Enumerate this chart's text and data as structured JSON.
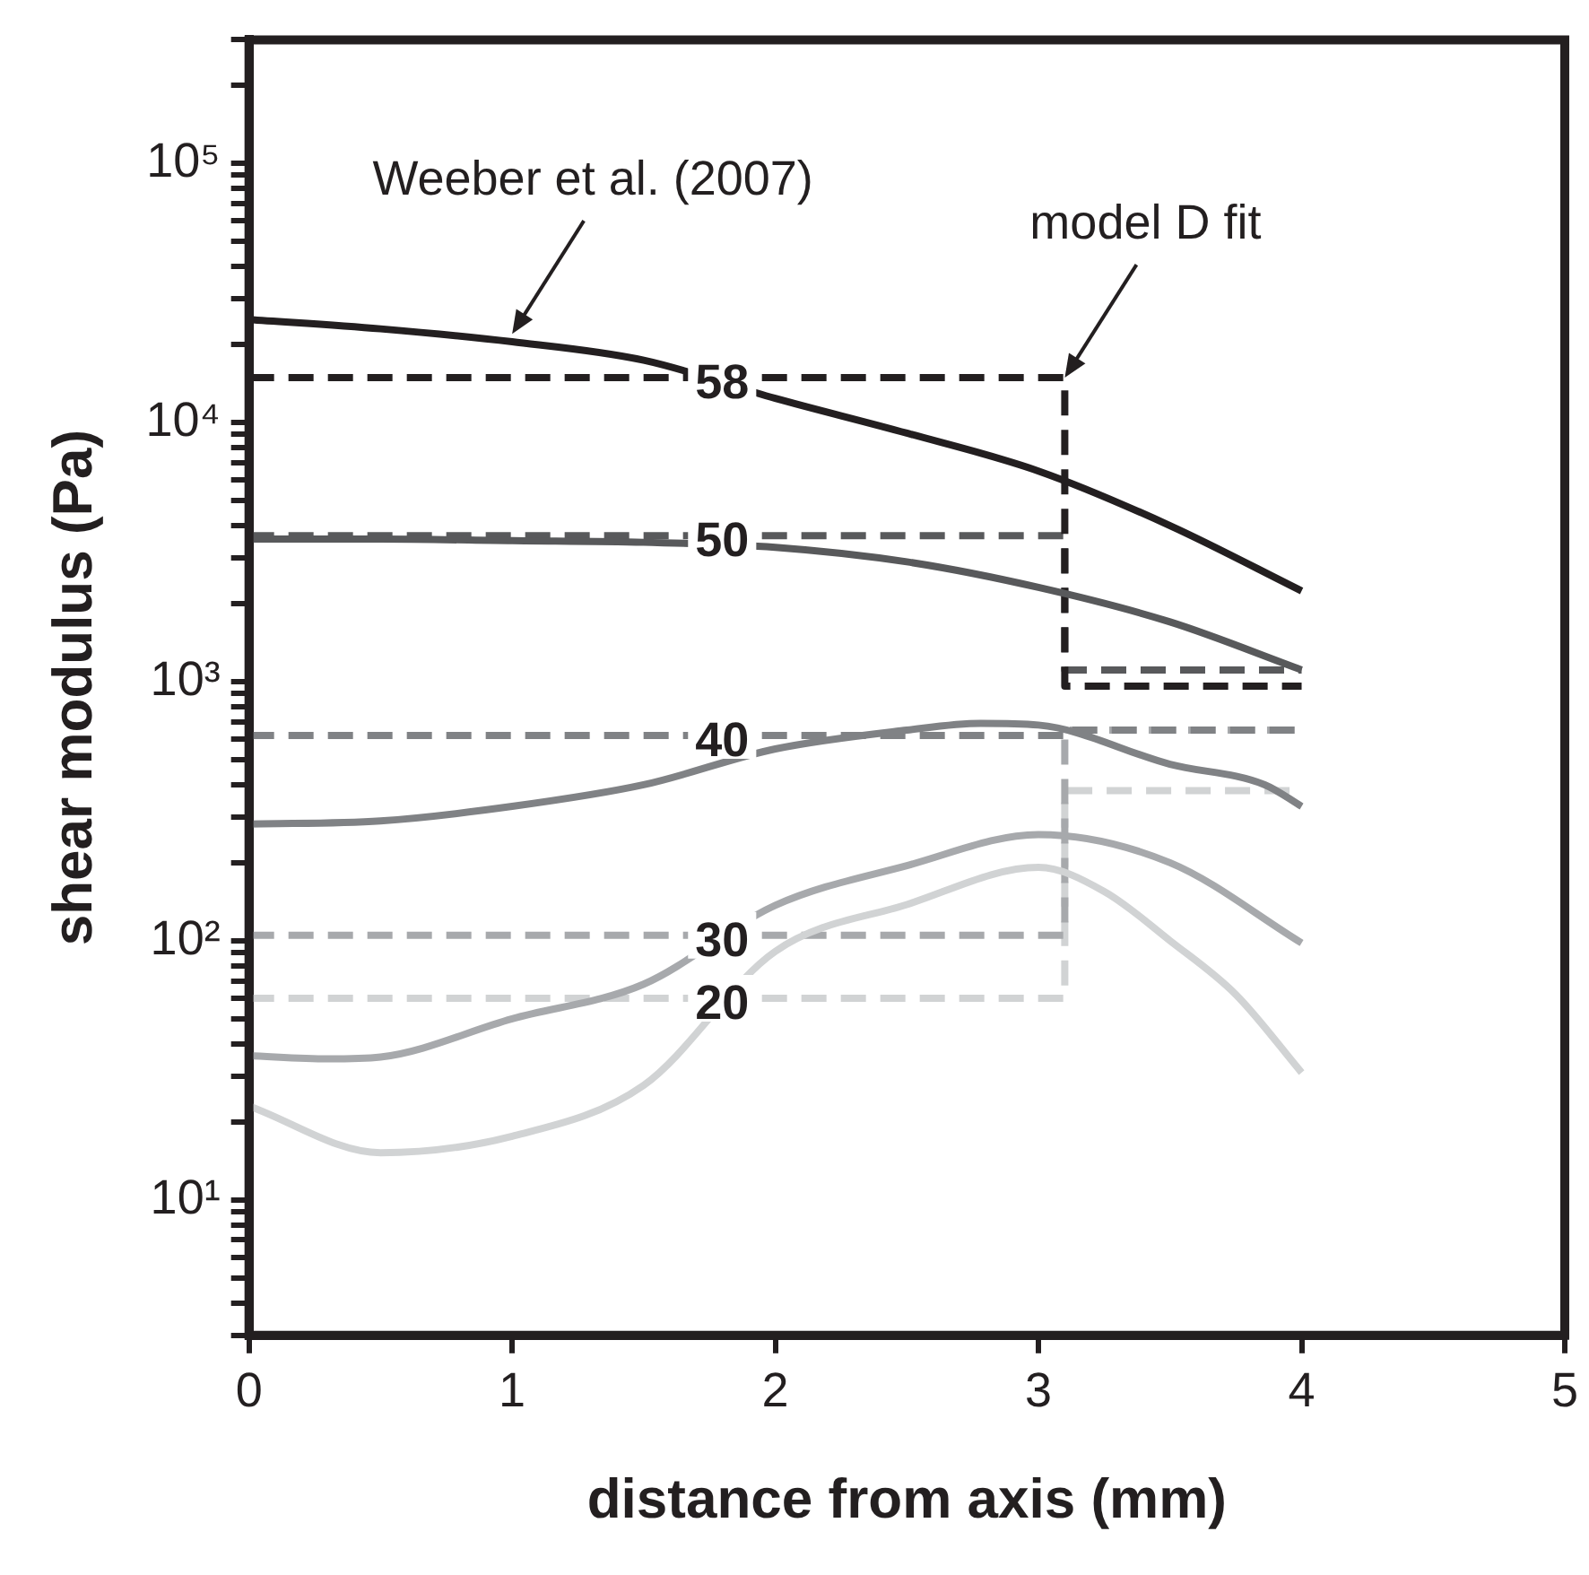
{
  "chart_data": {
    "type": "line",
    "xlabel": "distance from axis (mm)",
    "ylabel": "shear modulus (Pa)",
    "log": "y",
    "grid": false,
    "legend": false,
    "xlim": [
      0,
      5
    ],
    "xticks": [
      0,
      1,
      2,
      3,
      4,
      5
    ],
    "ylim": [
      3,
      300000
    ],
    "yticks": [
      {
        "value": 3,
        "label": null
      },
      {
        "value": 4,
        "label": null
      },
      {
        "value": 5,
        "label": null
      },
      {
        "value": 6,
        "label": null
      },
      {
        "value": 7,
        "label": null
      },
      {
        "value": 8,
        "label": null
      },
      {
        "value": 9,
        "label": null
      },
      {
        "value": 10,
        "label": "10¹"
      },
      {
        "value": 20,
        "label": null
      },
      {
        "value": 30,
        "label": null
      },
      {
        "value": 40,
        "label": null
      },
      {
        "value": 50,
        "label": null
      },
      {
        "value": 60,
        "label": null
      },
      {
        "value": 70,
        "label": null
      },
      {
        "value": 80,
        "label": null
      },
      {
        "value": 90,
        "label": null
      },
      {
        "value": 100,
        "label": "10²"
      },
      {
        "value": 200,
        "label": null
      },
      {
        "value": 300,
        "label": null
      },
      {
        "value": 400,
        "label": null
      },
      {
        "value": 500,
        "label": null
      },
      {
        "value": 600,
        "label": null
      },
      {
        "value": 700,
        "label": null
      },
      {
        "value": 800,
        "label": null
      },
      {
        "value": 900,
        "label": null
      },
      {
        "value": 1000,
        "label": "10³"
      },
      {
        "value": 2000,
        "label": null
      },
      {
        "value": 3000,
        "label": null
      },
      {
        "value": 4000,
        "label": null
      },
      {
        "value": 5000,
        "label": null
      },
      {
        "value": 6000,
        "label": null
      },
      {
        "value": 7000,
        "label": null
      },
      {
        "value": 8000,
        "label": null
      },
      {
        "value": 9000,
        "label": null
      },
      {
        "value": 10000,
        "label": "10⁴"
      },
      {
        "value": 20000,
        "label": null
      },
      {
        "value": 30000,
        "label": null
      },
      {
        "value": 40000,
        "label": null
      },
      {
        "value": 50000,
        "label": null
      },
      {
        "value": 60000,
        "label": null
      },
      {
        "value": 70000,
        "label": null
      },
      {
        "value": 80000,
        "label": null
      },
      {
        "value": 90000,
        "label": null
      },
      {
        "value": 100000,
        "label": "10⁵"
      },
      {
        "value": 200000,
        "label": null
      },
      {
        "value": 300000,
        "label": null
      }
    ],
    "annotations": [
      {
        "text": "Weeber et al. (2007)",
        "x": 1.0,
        "y": 22000
      },
      {
        "text": "model D fit",
        "x": 3.1,
        "y": 14900
      }
    ],
    "series": [
      {
        "color": "#231f20",
        "x": [
          0,
          0.5,
          1,
          1.5,
          2,
          2.5,
          3,
          3.5,
          4
        ],
        "values": [
          25000,
          23000,
          20500,
          17400,
          12400,
          9100,
          6500,
          4000,
          2240
        ]
      },
      {
        "color": "#58595b",
        "x": [
          0,
          0.5,
          1,
          1.5,
          2,
          2.5,
          3,
          3.5,
          4
        ],
        "values": [
          3550,
          3550,
          3500,
          3450,
          3300,
          2900,
          2310,
          1700,
          1110
        ]
      },
      {
        "color": "#808285",
        "x": [
          0,
          0.5,
          1,
          1.5,
          2,
          2.5,
          2.78,
          3,
          3.5,
          3.86,
          4
        ],
        "values": [
          282,
          290,
          330,
          400,
          550,
          650,
          690,
          680,
          480,
          400,
          330
        ]
      },
      {
        "color": "#a7a9ac",
        "x": [
          0,
          0.3,
          0.5,
          1,
          1.5,
          2,
          2.5,
          3,
          3.5,
          4
        ],
        "values": [
          36,
          35,
          35.6,
          50,
          68,
          137,
          195,
          257,
          200,
          98
        ]
      },
      {
        "color": "#d1d3d4",
        "x": [
          0,
          0.5,
          1,
          1.5,
          2,
          2.5,
          3,
          3.25,
          3.5,
          3.75,
          4
        ],
        "values": [
          23,
          15.2,
          17.6,
          27.7,
          91,
          138,
          192,
          155,
          100,
          62,
          31
        ]
      },
      {
        "name": "58",
        "line_style": "dashed",
        "color": "#231f20",
        "x": [
          0,
          3.1,
          3.1,
          4
        ],
        "values": [
          14900,
          14900,
          960,
          960
        ]
      },
      {
        "name": "50",
        "line_style": "dashed",
        "color": "#58595b",
        "x": [
          0,
          3.1,
          3.1,
          4
        ],
        "values": [
          3660,
          3660,
          1110,
          1110
        ]
      },
      {
        "name": "40",
        "line_style": "dashed",
        "color": "#808285",
        "x": [
          0,
          3.1,
          3.1,
          4
        ],
        "values": [
          620,
          620,
          650,
          650
        ]
      },
      {
        "name": "30",
        "line_style": "dashed",
        "color": "#a7a9ac",
        "x": [
          0,
          3.1,
          3.1,
          4
        ],
        "values": [
          105,
          105,
          650,
          650
        ]
      },
      {
        "name": "20",
        "line_style": "dashed",
        "color": "#d1d3d4",
        "x": [
          0,
          3.1,
          3.1,
          4
        ],
        "values": [
          60,
          60,
          380,
          380
        ]
      }
    ]
  }
}
